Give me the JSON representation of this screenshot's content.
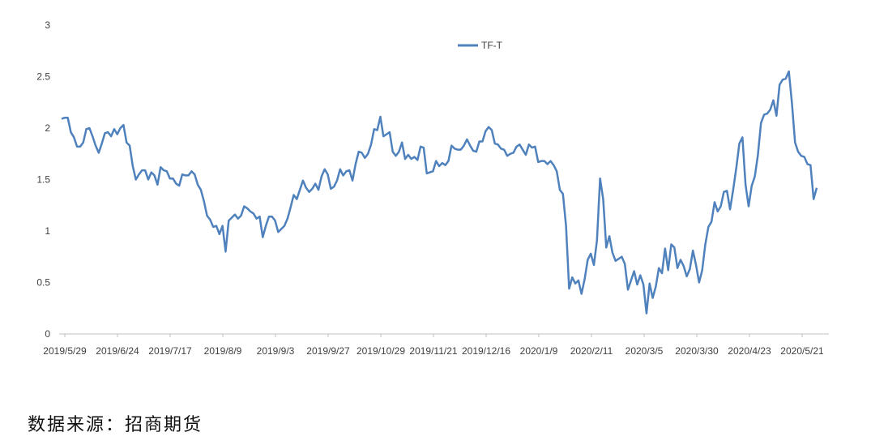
{
  "chart_data": {
    "type": "line",
    "title": "",
    "xlabel": "",
    "ylabel": "",
    "ylim": [
      0,
      3
    ],
    "yticks": [
      "0",
      "0.5",
      "1",
      "1.5",
      "2",
      "2.5",
      "3"
    ],
    "xtick_labels": [
      "2019/5/29",
      "2019/6/24",
      "2019/7/17",
      "2019/8/9",
      "2019/9/3",
      "2019/9/27",
      "2019/10/29",
      "2019/11/21",
      "2019/12/16",
      "2020/1/9",
      "2020/2/11",
      "2020/3/5",
      "2020/3/30",
      "2020/4/23",
      "2020/5/21"
    ],
    "grid": false,
    "legend": "top-center",
    "colors": {
      "series": "#4f81bd",
      "axis": "#bfbfbf"
    },
    "series": [
      {
        "name": "TF-T",
        "values": [
          2.09,
          2.1,
          2.1,
          1.96,
          1.91,
          1.82,
          1.82,
          1.86,
          1.99,
          2.0,
          1.92,
          1.83,
          1.76,
          1.85,
          1.95,
          1.96,
          1.92,
          1.99,
          1.94,
          2.0,
          2.03,
          1.86,
          1.83,
          1.63,
          1.5,
          1.55,
          1.59,
          1.59,
          1.5,
          1.57,
          1.54,
          1.45,
          1.62,
          1.59,
          1.58,
          1.51,
          1.51,
          1.46,
          1.44,
          1.55,
          1.54,
          1.54,
          1.58,
          1.55,
          1.45,
          1.4,
          1.29,
          1.15,
          1.11,
          1.04,
          1.05,
          0.97,
          1.05,
          0.8,
          1.1,
          1.13,
          1.16,
          1.12,
          1.15,
          1.24,
          1.22,
          1.19,
          1.17,
          1.12,
          1.14,
          0.94,
          1.05,
          1.14,
          1.14,
          1.1,
          0.99,
          1.02,
          1.05,
          1.12,
          1.23,
          1.35,
          1.31,
          1.4,
          1.49,
          1.42,
          1.38,
          1.41,
          1.46,
          1.4,
          1.53,
          1.6,
          1.55,
          1.41,
          1.43,
          1.49,
          1.6,
          1.54,
          1.58,
          1.59,
          1.49,
          1.65,
          1.77,
          1.76,
          1.71,
          1.75,
          1.84,
          1.99,
          1.98,
          2.11,
          1.92,
          1.94,
          1.96,
          1.77,
          1.73,
          1.77,
          1.86,
          1.7,
          1.74,
          1.7,
          1.72,
          1.69,
          1.82,
          1.81,
          1.56,
          1.57,
          1.58,
          1.68,
          1.63,
          1.66,
          1.64,
          1.68,
          1.83,
          1.8,
          1.79,
          1.79,
          1.83,
          1.89,
          1.83,
          1.78,
          1.77,
          1.87,
          1.87,
          1.97,
          2.01,
          1.98,
          1.85,
          1.84,
          1.8,
          1.79,
          1.73,
          1.75,
          1.76,
          1.82,
          1.84,
          1.79,
          1.74,
          1.84,
          1.81,
          1.82,
          1.67,
          1.68,
          1.68,
          1.65,
          1.68,
          1.64,
          1.58,
          1.4,
          1.36,
          1.05,
          0.44,
          0.55,
          0.49,
          0.52,
          0.39,
          0.53,
          0.72,
          0.78,
          0.67,
          0.91,
          1.51,
          1.31,
          0.84,
          0.95,
          0.79,
          0.71,
          0.73,
          0.75,
          0.68,
          0.43,
          0.52,
          0.61,
          0.48,
          0.57,
          0.48,
          0.2,
          0.49,
          0.35,
          0.46,
          0.64,
          0.59,
          0.83,
          0.62,
          0.87,
          0.84,
          0.64,
          0.72,
          0.66,
          0.56,
          0.63,
          0.81,
          0.67,
          0.5,
          0.62,
          0.87,
          1.04,
          1.09,
          1.28,
          1.19,
          1.24,
          1.38,
          1.39,
          1.21,
          1.4,
          1.61,
          1.85,
          1.91,
          1.45,
          1.24,
          1.44,
          1.53,
          1.74,
          2.05,
          2.13,
          2.14,
          2.18,
          2.27,
          2.12,
          2.42,
          2.47,
          2.48,
          2.55,
          2.24,
          1.86,
          1.77,
          1.73,
          1.72,
          1.65,
          1.64,
          1.31,
          1.42
        ]
      }
    ],
    "source_note": "数据来源：招商期货"
  }
}
